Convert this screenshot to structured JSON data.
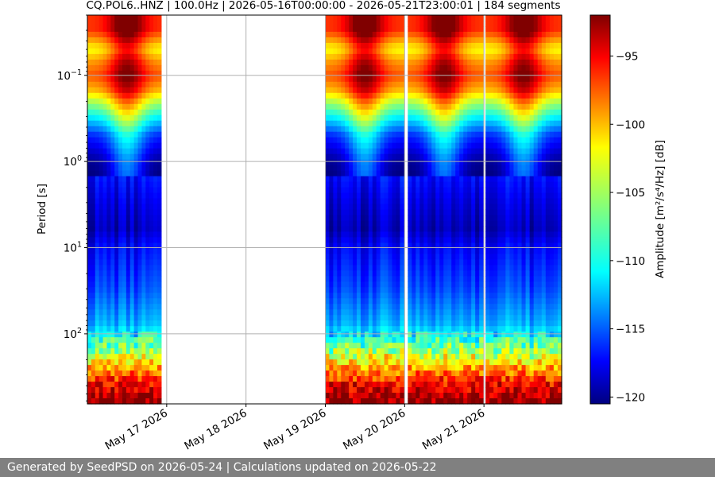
{
  "chart_data": {
    "type": "heatmap",
    "title": "CQ.POL6..HNZ | 100.0Hz | 2026-05-16T00:00:00 - 2026-05-21T23:00:01 | 184 segments",
    "ylabel": "Period [s]",
    "y_scale": "log",
    "y_inverted": true,
    "ylim": [
      0.02,
      650
    ],
    "y_ticks": [
      {
        "value": 0.1,
        "base": "10",
        "exp": "−1"
      },
      {
        "value": 1,
        "base": "10",
        "exp": "0"
      },
      {
        "value": 10,
        "base": "10",
        "exp": "1"
      },
      {
        "value": 100,
        "base": "10",
        "exp": "2"
      }
    ],
    "x_ticks": [
      "May 17 2026",
      "May 18 2026",
      "May 19 2026",
      "May 20 2026",
      "May 21 2026"
    ],
    "x_range_days": [
      16.0,
      21.98
    ],
    "grid": true,
    "data_intervals": [
      [
        16.0,
        16.93
      ],
      [
        19.0,
        19.99
      ],
      [
        20.04,
        20.99
      ],
      [
        21.02,
        21.98
      ]
    ],
    "colorbar": {
      "label": "Amplitude [m²/s⁴/Hz] [dB]",
      "range": [
        -120.5,
        -92
      ],
      "ticks": [
        "−95",
        "−100",
        "−105",
        "−110",
        "−115",
        "−120"
      ],
      "tick_values": [
        -95,
        -100,
        -105,
        -110,
        -115,
        -120
      ],
      "colormap": "jet"
    },
    "amplitude_profile_by_period": [
      {
        "period": 0.02,
        "db": -93
      },
      {
        "period": 0.03,
        "db": -93
      },
      {
        "period": 0.035,
        "db": -95
      },
      {
        "period": 0.05,
        "db": -99
      },
      {
        "period": 0.07,
        "db": -96
      },
      {
        "period": 0.1,
        "db": -94
      },
      {
        "period": 0.15,
        "db": -97
      },
      {
        "period": 0.2,
        "db": -101
      },
      {
        "period": 0.3,
        "db": -106
      },
      {
        "period": 0.5,
        "db": -112
      },
      {
        "period": 1,
        "db": -116
      },
      {
        "period": 3,
        "db": -118
      },
      {
        "period": 6,
        "db": -119
      },
      {
        "period": 10,
        "db": -117
      },
      {
        "period": 30,
        "db": -115
      },
      {
        "period": 80,
        "db": -112
      },
      {
        "period": 150,
        "db": -106
      },
      {
        "period": 250,
        "db": -100
      },
      {
        "period": 400,
        "db": -95
      },
      {
        "period": 650,
        "db": -92
      }
    ]
  },
  "footer": {
    "text": "Generated by SeedPSD on 2026-05-24 | Calculations updated on 2026-05-22"
  }
}
